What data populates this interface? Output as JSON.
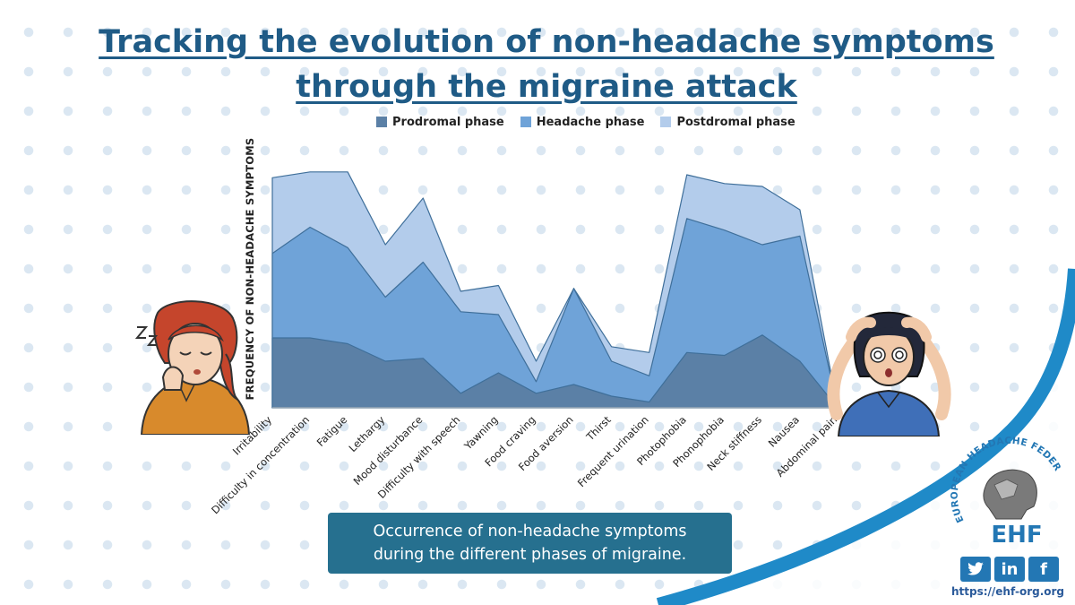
{
  "title_line1": "Tracking the evolution of non-headache symptoms",
  "title_line2": "through the migraine attack",
  "caption_line1": "Occurrence of non-headache symptoms",
  "caption_line2": "during the different phases of migraine.",
  "brand": {
    "org_line": "EUROPEAN HEADACHE FEDERATION",
    "abbr": "EHF",
    "url": "https://ehf-org.org",
    "social_icons": [
      "twitter-icon",
      "linkedin-icon",
      "facebook-icon"
    ]
  },
  "colors": {
    "title": "#1f5b86",
    "prodromal": "#5b80a6",
    "headache": "#6fa3d8",
    "postdromal": "#b3cceb",
    "caption_bg": "#26708f",
    "brand": "#2377b4"
  },
  "chart_data": {
    "type": "area",
    "stacked": true,
    "ylabel": "FREQUENCY OF NON-HEADACHE SYMPTOMS",
    "categories": [
      "Irritability",
      "Difficulty in concentration",
      "Fatigue",
      "Lethargy",
      "Mood disturbance",
      "Difficulty with speech",
      "Yawning",
      "Food craving",
      "Food aversion",
      "Thirst",
      "Frequent urination",
      "Photophobia",
      "Phonophobia",
      "Neck stiffness",
      "Nausea",
      "Abdominal pain"
    ],
    "series": [
      {
        "name": "Prodromal phase",
        "color": "#5b80a6",
        "values": [
          24,
          24,
          22,
          16,
          17,
          5,
          12,
          5,
          8,
          4,
          2,
          19,
          18,
          25,
          16,
          0
        ]
      },
      {
        "name": "Headache phase",
        "color": "#6fa3d8",
        "values": [
          29,
          38,
          33,
          22,
          33,
          28,
          20,
          4,
          33,
          12,
          9,
          46,
          43,
          31,
          43,
          0
        ]
      },
      {
        "name": "Postdromal phase",
        "color": "#b3cceb",
        "values": [
          26,
          19,
          26,
          18,
          22,
          7,
          10,
          7,
          0,
          5,
          8,
          15,
          16,
          20,
          9,
          0
        ]
      }
    ],
    "ylim": [
      0,
      100
    ],
    "grid": false,
    "legend_position": "top-center",
    "yticks_shown": false
  }
}
